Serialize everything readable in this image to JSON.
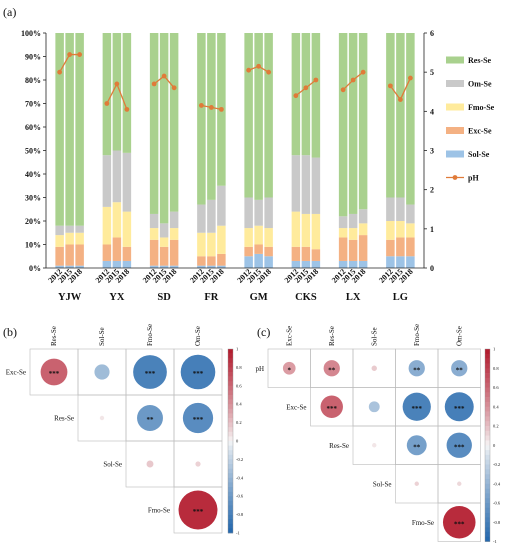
{
  "panels": {
    "a": "(a)",
    "b": "(b)",
    "c": "(c)"
  },
  "colors": {
    "Res-Se": "#a9d18e",
    "Om-Se": "#c9c9c9",
    "Fmo-Se": "#ffeb9c",
    "Exc-Se": "#f4b183",
    "Sol-Se": "#9dc3e6",
    "pH": "#e07b39",
    "pos": "#b2182b",
    "neg": "#2166ac"
  },
  "chart_data": [
    {
      "type": "bar",
      "stacked": true,
      "percent": true,
      "groups": [
        "YJW",
        "YX",
        "SD",
        "FR",
        "GM",
        "CKS",
        "LX",
        "LG"
      ],
      "years": [
        "2012",
        "2015",
        "2018"
      ],
      "yticks_left": [
        "0%",
        "10%",
        "20%",
        "30%",
        "40%",
        "50%",
        "60%",
        "70%",
        "80%",
        "90%",
        "100%"
      ],
      "yticks_right": [
        "0",
        "1",
        "2",
        "3",
        "4",
        "5",
        "6"
      ],
      "ylim_left": [
        0,
        100
      ],
      "ylim_right": [
        0,
        6
      ],
      "legend": [
        "Res-Se",
        "Om-Se",
        "Fmo-Se",
        "Exc-Se",
        "Sol-Se",
        "pH"
      ],
      "legend_position": "right",
      "series": [
        {
          "name": "Sol-Se",
          "values": [
            1,
            1,
            1,
            3,
            3,
            3,
            1,
            1,
            1,
            1,
            1,
            1,
            5,
            6,
            5,
            3,
            3,
            3,
            3,
            3,
            3,
            5,
            5,
            5
          ]
        },
        {
          "name": "Exc-Se",
          "values": [
            8,
            9,
            9,
            7,
            10,
            6,
            11,
            8,
            11,
            4,
            4,
            5,
            4,
            4,
            4,
            6,
            6,
            5,
            10,
            9,
            11,
            7,
            8,
            8
          ]
        },
        {
          "name": "Fmo-Se",
          "values": [
            5,
            5,
            5,
            16,
            15,
            15,
            5,
            4,
            5,
            10,
            10,
            12,
            8,
            8,
            8,
            15,
            14,
            15,
            4,
            5,
            5,
            8,
            7,
            6
          ]
        },
        {
          "name": "Om-Se",
          "values": [
            4,
            3,
            3,
            22,
            22,
            25,
            6,
            6,
            7,
            12,
            14,
            17,
            13,
            11,
            13,
            24,
            25,
            24,
            5,
            6,
            6,
            10,
            10,
            8
          ]
        },
        {
          "name": "Res-Se",
          "values": [
            82,
            82,
            82,
            52,
            50,
            51,
            77,
            81,
            76,
            73,
            71,
            65,
            70,
            71,
            70,
            52,
            52,
            53,
            78,
            77,
            75,
            70,
            70,
            73
          ]
        },
        {
          "name": "pH",
          "axis": "right",
          "type": "line",
          "values": [
            5.0,
            5.45,
            5.45,
            4.2,
            4.7,
            4.05,
            4.7,
            4.9,
            4.6,
            4.15,
            4.1,
            4.05,
            5.05,
            5.15,
            5.0,
            4.4,
            4.6,
            4.8,
            4.55,
            4.8,
            5.0,
            4.65,
            4.3,
            4.85
          ]
        }
      ]
    },
    {
      "type": "heatmap",
      "title": "(b)",
      "variables": [
        "Exc-Se",
        "Res-Se",
        "Sol-Se",
        "Fmo-Se",
        "Om-Se"
      ],
      "row_labels": [
        "Exc-Se",
        "Res-Se",
        "Sol-Se",
        "Fmo-Se"
      ],
      "col_labels": [
        "Res-Se",
        "Sol-Se",
        "Fmo-Se",
        "Om-Se"
      ],
      "cells": [
        {
          "row": "Exc-Se",
          "col": "Res-Se",
          "value": 0.62,
          "sig": "***"
        },
        {
          "row": "Exc-Se",
          "col": "Sol-Se",
          "value": -0.35,
          "sig": ""
        },
        {
          "row": "Exc-Se",
          "col": "Fmo-Se",
          "value": -0.78,
          "sig": "***"
        },
        {
          "row": "Exc-Se",
          "col": "Om-Se",
          "value": -0.8,
          "sig": "***"
        },
        {
          "row": "Res-Se",
          "col": "Sol-Se",
          "value": 0.05,
          "sig": ""
        },
        {
          "row": "Res-Se",
          "col": "Fmo-Se",
          "value": -0.6,
          "sig": "**"
        },
        {
          "row": "Res-Se",
          "col": "Om-Se",
          "value": -0.7,
          "sig": "***"
        },
        {
          "row": "Sol-Se",
          "col": "Fmo-Se",
          "value": 0.16,
          "sig": ""
        },
        {
          "row": "Sol-Se",
          "col": "Om-Se",
          "value": 0.12,
          "sig": ""
        },
        {
          "row": "Fmo-Se",
          "col": "Om-Se",
          "value": 0.9,
          "sig": "***"
        }
      ],
      "colorbar_ticks": [
        "1",
        "0.8",
        "0.6",
        "0.4",
        "0.2",
        "0",
        "-0.2",
        "-0.4",
        "-0.6",
        "-0.8",
        "-1"
      ],
      "clim": [
        -1,
        1
      ]
    },
    {
      "type": "heatmap",
      "title": "(c)",
      "variables": [
        "pH",
        "Exc-Se",
        "Res-Se",
        "Sol-Se",
        "Fmo-Se",
        "Om-Se"
      ],
      "row_labels": [
        "pH",
        "Exc-Se",
        "Res-Se",
        "Sol-Se",
        "Fmo-Se"
      ],
      "col_labels": [
        "Exc-Se",
        "Res-Se",
        "Sol-Se",
        "Fmo-Se",
        "Om-Se"
      ],
      "cells": [
        {
          "row": "pH",
          "col": "Exc-Se",
          "value": 0.35,
          "sig": "*"
        },
        {
          "row": "pH",
          "col": "Res-Se",
          "value": 0.45,
          "sig": "**"
        },
        {
          "row": "pH",
          "col": "Sol-Se",
          "value": 0.15,
          "sig": ""
        },
        {
          "row": "pH",
          "col": "Fmo-Se",
          "value": -0.45,
          "sig": "**"
        },
        {
          "row": "pH",
          "col": "Om-Se",
          "value": -0.45,
          "sig": "**"
        },
        {
          "row": "Exc-Se",
          "col": "Res-Se",
          "value": 0.62,
          "sig": "***"
        },
        {
          "row": "Exc-Se",
          "col": "Sol-Se",
          "value": -0.3,
          "sig": ""
        },
        {
          "row": "Exc-Se",
          "col": "Fmo-Se",
          "value": -0.78,
          "sig": "***"
        },
        {
          "row": "Exc-Se",
          "col": "Om-Se",
          "value": -0.8,
          "sig": "***"
        },
        {
          "row": "Res-Se",
          "col": "Sol-Se",
          "value": 0.05,
          "sig": ""
        },
        {
          "row": "Res-Se",
          "col": "Fmo-Se",
          "value": -0.55,
          "sig": "**"
        },
        {
          "row": "Res-Se",
          "col": "Om-Se",
          "value": -0.7,
          "sig": "***"
        },
        {
          "row": "Sol-Se",
          "col": "Fmo-Se",
          "value": 0.12,
          "sig": ""
        },
        {
          "row": "Sol-Se",
          "col": "Om-Se",
          "value": 0.1,
          "sig": ""
        },
        {
          "row": "Fmo-Se",
          "col": "Om-Se",
          "value": 0.9,
          "sig": "***"
        }
      ],
      "colorbar_ticks": [
        "1",
        "0.8",
        "0.6",
        "0.4",
        "0.2",
        "0",
        "-0.2",
        "-0.4",
        "-0.6",
        "-0.8",
        "-1"
      ],
      "clim": [
        -1,
        1
      ]
    }
  ]
}
